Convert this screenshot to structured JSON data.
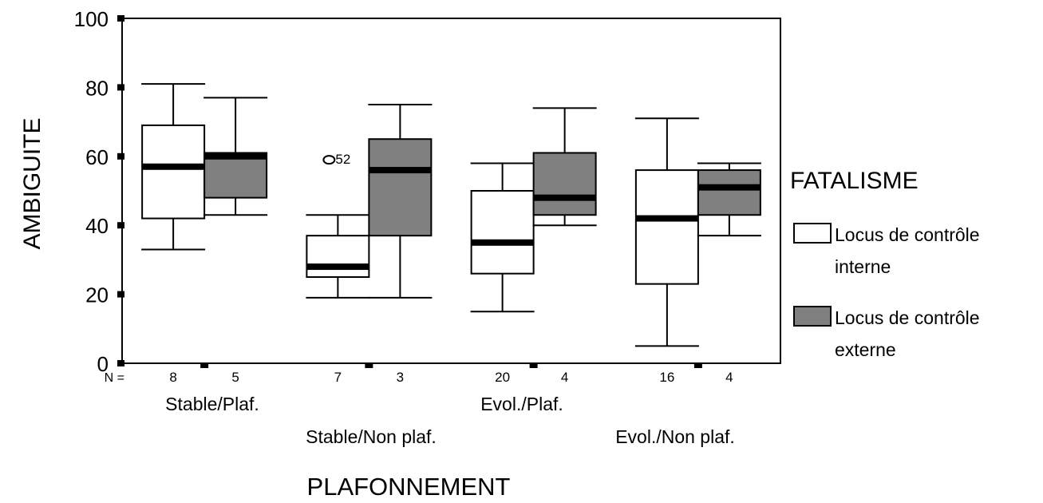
{
  "chart_data": {
    "type": "boxplot",
    "ylabel": "AMBIGUITE",
    "xlabel": "PLAFONNEMENT",
    "ylim": [
      0,
      100
    ],
    "yticks": [
      0,
      20,
      40,
      60,
      80,
      100
    ],
    "grid": false,
    "n_label": "N =",
    "categories": [
      "Stable/Plaf.",
      "Stable/Non plaf.",
      "Evol./Plaf.",
      "Evol./Non plaf."
    ],
    "legend": {
      "title": "FATALISME",
      "placement": "right",
      "entries": [
        {
          "line1": "Locus de contrôle",
          "line2": "interne",
          "color": "#ffffff"
        },
        {
          "line1": "Locus de contrôle",
          "line2": "externe",
          "color": "#808080"
        }
      ]
    },
    "series": [
      {
        "name": "Locus de contrôle interne",
        "color": "#ffffff",
        "boxes": [
          {
            "n": "8",
            "min": 33,
            "q1": 42,
            "median": 57,
            "q3": 69,
            "max": 81
          },
          {
            "n": "7",
            "min": 19,
            "q1": 25,
            "median": 28,
            "q3": 37,
            "max": 43
          },
          {
            "n": "20",
            "min": 15,
            "q1": 26,
            "median": 35,
            "q3": 50,
            "max": 58
          },
          {
            "n": "16",
            "min": 5,
            "q1": 23,
            "median": 42,
            "q3": 56,
            "max": 71
          }
        ]
      },
      {
        "name": "Locus de contrôle externe",
        "color": "#808080",
        "boxes": [
          {
            "n": "5",
            "min": 43,
            "q1": 48,
            "median": 60,
            "q3": 61,
            "max": 77
          },
          {
            "n": "3",
            "min": 19,
            "q1": 37,
            "median": 56,
            "q3": 65,
            "max": 75
          },
          {
            "n": "4",
            "min": 40,
            "q1": 43,
            "median": 48,
            "q3": 61,
            "max": 74
          },
          {
            "n": "4",
            "min": 37,
            "q1": 43,
            "median": 51,
            "q3": 56,
            "max": 58
          }
        ]
      }
    ],
    "outliers": [
      {
        "category": "Stable/Non plaf.",
        "series": "Locus de contrôle interne",
        "value": 59,
        "label": "52"
      }
    ]
  }
}
